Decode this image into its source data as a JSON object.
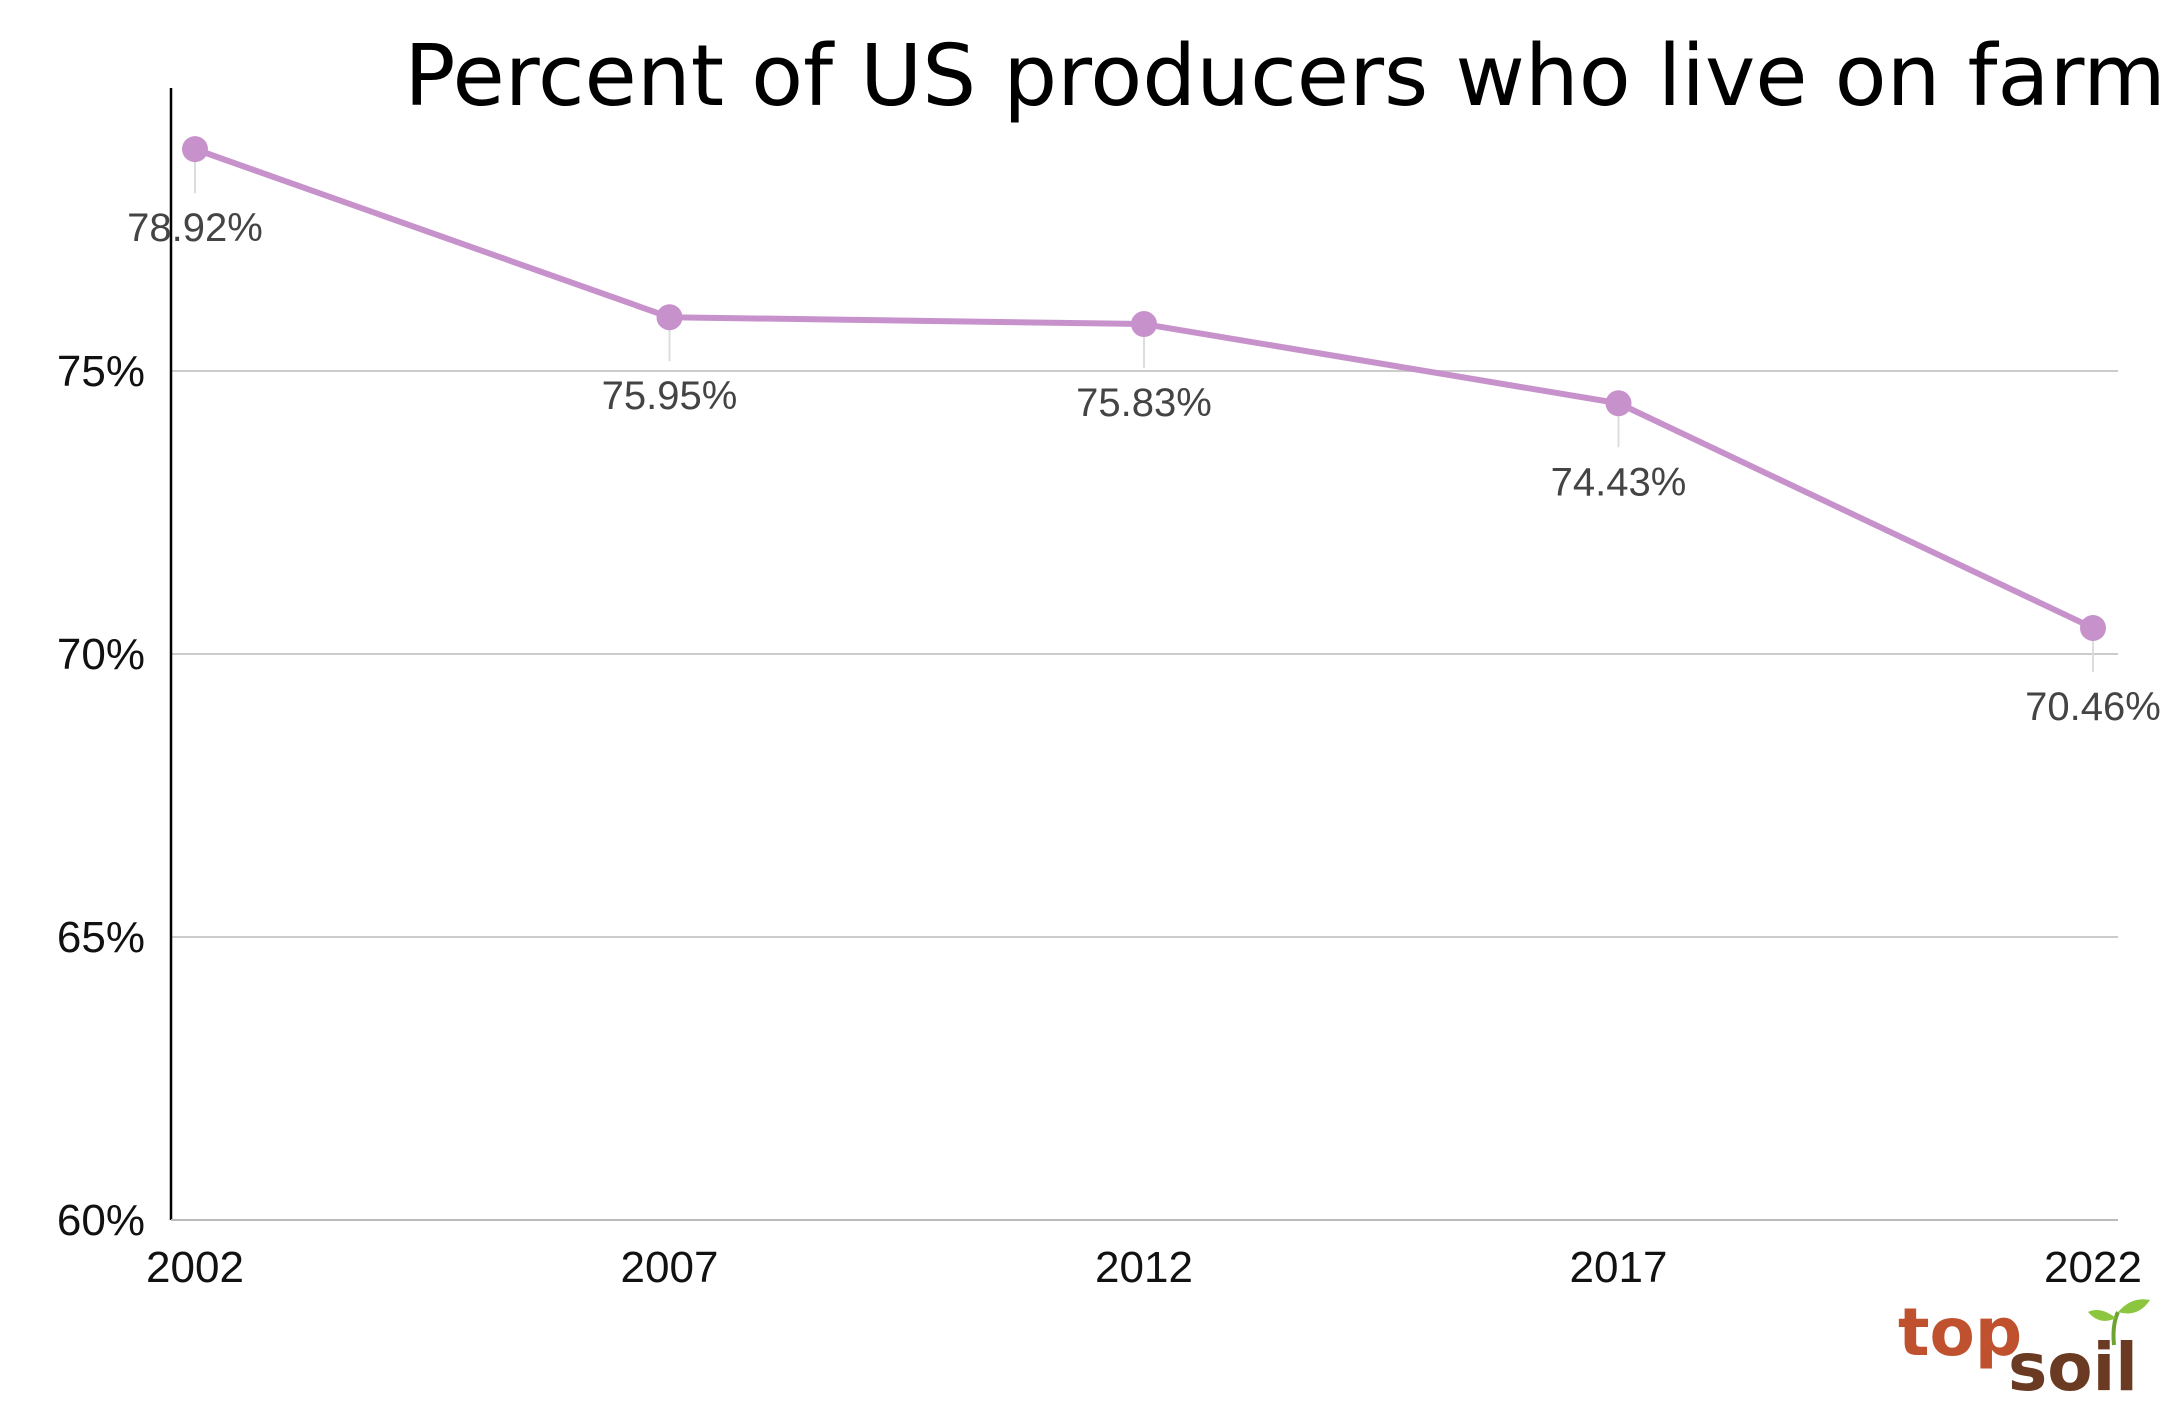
{
  "chart_data": {
    "type": "line",
    "title": "Percent of US producers who live on farm",
    "xlabel": "",
    "ylabel": "",
    "categories": [
      "2002",
      "2007",
      "2012",
      "2017",
      "2022"
    ],
    "series": [
      {
        "values": [
          78.92,
          75.95,
          75.83,
          74.43,
          70.46
        ],
        "labels": [
          "78.92%",
          "75.95%",
          "75.83%",
          "74.43%",
          "70.46%"
        ],
        "color": "#c792cc"
      }
    ],
    "ylim": [
      60,
      80
    ],
    "yticks": [
      60,
      65,
      70,
      75
    ],
    "ytick_labels": [
      "60%",
      "65%",
      "70%",
      "75%"
    ],
    "grid": true,
    "legend": "none"
  },
  "logo": {
    "text_top": "top",
    "text_bottom": "soil",
    "colors": {
      "top": "#c0512f",
      "bottom": "#6b3a22",
      "sprout": "#8cc63f"
    }
  }
}
